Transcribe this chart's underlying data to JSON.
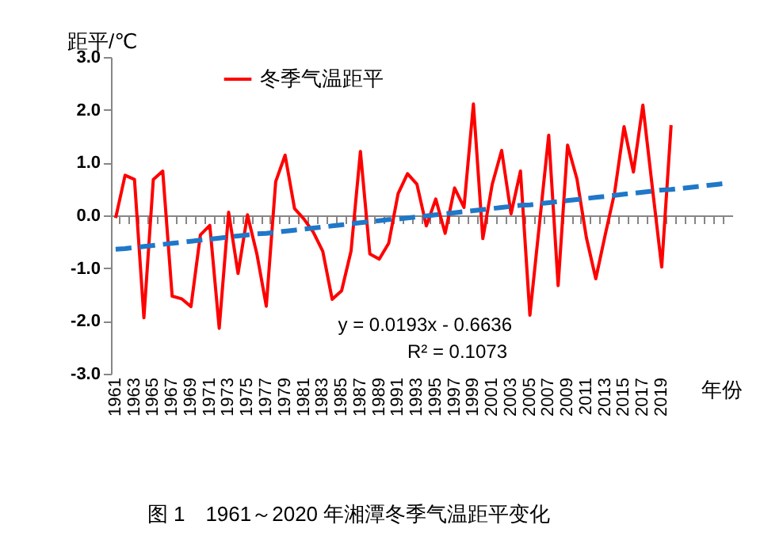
{
  "chart_data": {
    "type": "line",
    "ylabel": "距平/℃",
    "xlabel": "年份",
    "categories": [
      "1961",
      null,
      "1963",
      null,
      "1965",
      null,
      "1967",
      null,
      "1969",
      null,
      "1971",
      null,
      "1973",
      null,
      "1975",
      null,
      "1977",
      null,
      "1979",
      null,
      "1981",
      null,
      "1983",
      null,
      "1985",
      null,
      "1987",
      null,
      "1989",
      null,
      "1991",
      null,
      "1993",
      null,
      "1995",
      null,
      "1997",
      null,
      "1999",
      null,
      "2001",
      null,
      "2003",
      null,
      "2005",
      null,
      "2007",
      null,
      "2009",
      null,
      "2011",
      null,
      "2013",
      null,
      "2015",
      null,
      "2017",
      null,
      "2019",
      null,
      null,
      null,
      null,
      null,
      null,
      null
    ],
    "ylim": [
      -3,
      3
    ],
    "yticks": [
      {
        "value": -3,
        "label": "-3.0"
      },
      {
        "value": -2,
        "label": "-2.0"
      },
      {
        "value": -1,
        "label": "-1.0"
      },
      {
        "value": 0,
        "label": "0.0"
      },
      {
        "value": 1,
        "label": "1.0"
      },
      {
        "value": 2,
        "label": "2.0"
      },
      {
        "value": 3,
        "label": "3.0"
      }
    ],
    "legend": "top",
    "line_style": "solid",
    "series": [
      {
        "name": "冬季气温距平",
        "type": "line",
        "color": "#ff0000",
        "values": [
          -0.05,
          0.76,
          0.68,
          -1.94,
          0.68,
          0.84,
          -1.53,
          -1.58,
          -1.73,
          -0.37,
          -0.19,
          -2.14,
          0.06,
          -1.1,
          0.01,
          -0.73,
          -1.72,
          0.64,
          1.14,
          0.13,
          -0.07,
          -0.32,
          -0.68,
          -1.59,
          -1.43,
          -0.68,
          1.21,
          -0.73,
          -0.83,
          -0.53,
          0.41,
          0.79,
          0.59,
          -0.2,
          0.31,
          -0.34,
          0.52,
          0.15,
          2.11,
          -0.44,
          0.59,
          1.23,
          0.03,
          0.84,
          -1.89,
          -0.19,
          1.52,
          -1.33,
          1.33,
          0.69,
          -0.42,
          -1.2,
          -0.37,
          0.43,
          1.68,
          0.82,
          2.09,
          0.54,
          -0.98,
          1.71,
          null,
          null,
          null,
          null,
          null,
          null
        ]
      },
      {
        "type": "line",
        "color": "#1f78c8",
        "line_style": "dashed",
        "values": [
          -0.64,
          -0.63,
          -0.61,
          -0.59,
          -0.57,
          -0.55,
          -0.53,
          -0.51,
          -0.49,
          -0.47,
          -0.45,
          -0.43,
          -0.41,
          -0.39,
          -0.37,
          -0.35,
          -0.34,
          -0.32,
          -0.3,
          -0.28,
          -0.26,
          -0.24,
          -0.22,
          -0.2,
          -0.18,
          -0.16,
          -0.14,
          -0.12,
          -0.1,
          -0.08,
          -0.07,
          -0.05,
          -0.03,
          -0.01,
          0.01,
          0.03,
          0.05,
          0.07,
          0.09,
          0.11,
          0.13,
          0.15,
          0.17,
          0.19,
          0.2,
          0.22,
          0.24,
          0.26,
          0.28,
          0.3,
          0.32,
          0.34,
          0.36,
          0.38,
          0.4,
          0.42,
          0.44,
          0.46,
          0.48,
          0.49,
          0.51,
          0.53,
          0.55,
          0.57,
          0.59,
          0.61
        ]
      }
    ],
    "annotations": [
      "y = 0.0193x - 0.6636",
      "R² = 0.1073",
      "图 1　1961～2020 年湘潭冬季气温距平变化"
    ]
  }
}
